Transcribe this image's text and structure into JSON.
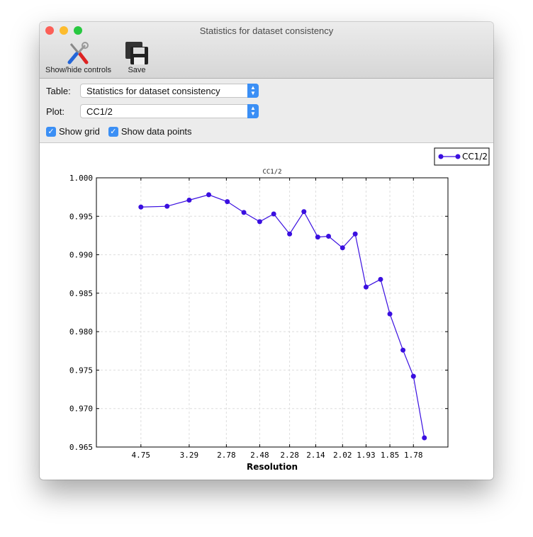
{
  "window": {
    "title": "Statistics for dataset consistency"
  },
  "toolbar": {
    "show_hide_label": "Show/hide controls",
    "save_label": "Save"
  },
  "controls": {
    "table_label": "Table:",
    "table_value": "Statistics for dataset consistency",
    "plot_label": "Plot:",
    "plot_value": "CC1/2",
    "show_grid_label": "Show grid",
    "show_grid_checked": true,
    "show_points_label": "Show data points",
    "show_points_checked": true
  },
  "colors": {
    "series": "#3a0fe0",
    "accent": "#3b8ff5"
  },
  "chart_data": {
    "type": "line",
    "title": "CC1/2",
    "xlabel": "Resolution",
    "ylabel": "",
    "x_scale": "reciprocal-square (1/d^2)",
    "ylim": [
      0.965,
      1.0
    ],
    "yticks": [
      "1.000",
      "0.995",
      "0.990",
      "0.985",
      "0.980",
      "0.975",
      "0.970",
      "0.965"
    ],
    "xticks": [
      "4.75",
      "3.29",
      "2.78",
      "2.48",
      "2.28",
      "2.14",
      "2.02",
      "1.93",
      "1.85",
      "1.78"
    ],
    "grid": true,
    "legend": "top-right",
    "series": [
      {
        "name": "CC1/2",
        "x": [
          4.75,
          3.77,
          3.29,
          2.99,
          2.77,
          2.61,
          2.48,
          2.38,
          2.28,
          2.2,
          2.13,
          2.08,
          2.02,
          1.97,
          1.93,
          1.88,
          1.85,
          1.81,
          1.78,
          1.75
        ],
        "y": [
          0.9962,
          0.9963,
          0.9971,
          0.9978,
          0.9969,
          0.9955,
          0.9943,
          0.9953,
          0.9927,
          0.9956,
          0.9923,
          0.9924,
          0.9909,
          0.9927,
          0.9858,
          0.9868,
          0.9823,
          0.9776,
          0.9742,
          0.9662
        ]
      }
    ]
  }
}
